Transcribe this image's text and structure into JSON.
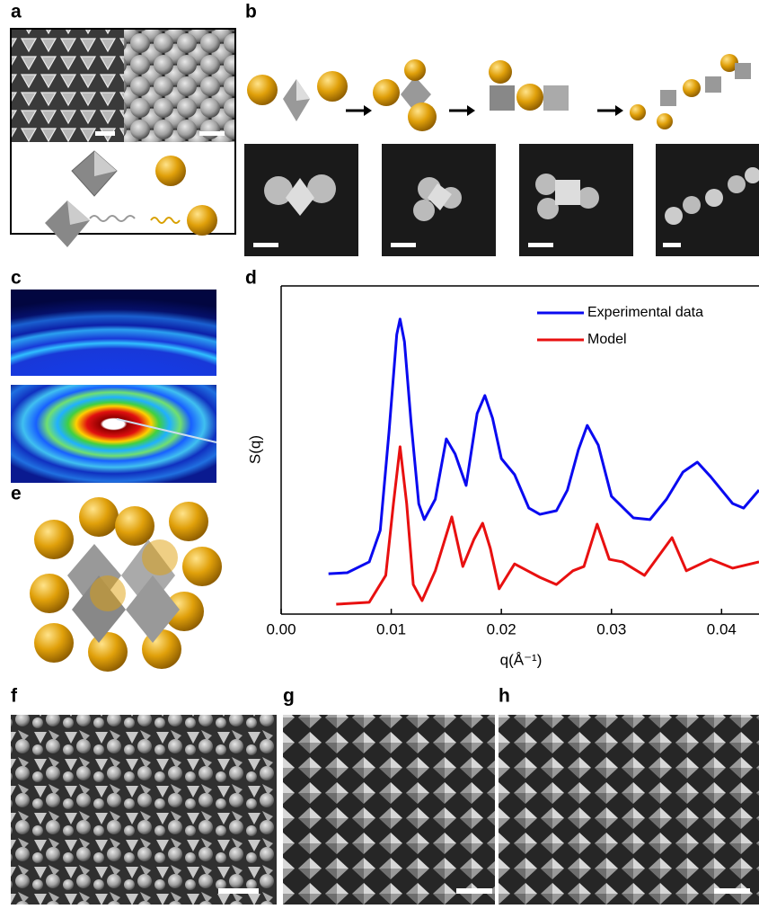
{
  "panel_labels": [
    "a",
    "b",
    "c",
    "d",
    "e",
    "f",
    "g",
    "h"
  ],
  "chart_data": {
    "type": "line",
    "xlabel": "q(Å⁻¹)",
    "ylabel": "S(q)",
    "xlim": [
      0,
      0.0434
    ],
    "ylim": [
      0,
      10
    ],
    "xticks": [
      {
        "value": 0,
        "label": "0.00"
      },
      0.01,
      0.02,
      0.03,
      0.04
    ],
    "legend": "upper right",
    "series": [
      {
        "name": "Experimental data",
        "color": "#0a0af0",
        "x": [
          0.0043,
          0.006,
          0.008,
          0.009,
          0.0098,
          0.0105,
          0.0108,
          0.0112,
          0.0118,
          0.0125,
          0.013,
          0.014,
          0.015,
          0.0158,
          0.0168,
          0.0178,
          0.0185,
          0.0192,
          0.02,
          0.0212,
          0.0225,
          0.0235,
          0.025,
          0.026,
          0.027,
          0.0278,
          0.0288,
          0.03,
          0.032,
          0.0335,
          0.035,
          0.0365,
          0.0378,
          0.039,
          0.041,
          0.042,
          0.0434
        ],
        "values": [
          1.23,
          1.26,
          1.59,
          2.55,
          5.56,
          8.52,
          8.99,
          8.3,
          5.84,
          3.36,
          2.88,
          3.5,
          5.34,
          4.88,
          3.92,
          6.11,
          6.66,
          5.97,
          4.74,
          4.25,
          3.23,
          3.04,
          3.15,
          3.78,
          5.01,
          5.75,
          5.15,
          3.59,
          2.93,
          2.88,
          3.5,
          4.33,
          4.63,
          4.19,
          3.37,
          3.23,
          3.78
        ]
      },
      {
        "name": "Model",
        "color": "#e81010",
        "x": [
          0.005,
          0.008,
          0.0095,
          0.0102,
          0.0108,
          0.0114,
          0.012,
          0.0128,
          0.014,
          0.0155,
          0.0165,
          0.0175,
          0.0183,
          0.019,
          0.0198,
          0.0212,
          0.0235,
          0.025,
          0.0265,
          0.0275,
          0.0287,
          0.0298,
          0.031,
          0.033,
          0.0355,
          0.0368,
          0.039,
          0.041,
          0.0434
        ],
        "values": [
          0.3,
          0.36,
          1.18,
          3.37,
          5.1,
          3.37,
          0.9,
          0.41,
          1.32,
          2.96,
          1.45,
          2.27,
          2.77,
          2.0,
          0.77,
          1.53,
          1.12,
          0.9,
          1.32,
          1.45,
          2.74,
          1.67,
          1.59,
          1.18,
          2.33,
          1.32,
          1.67,
          1.4,
          1.59
        ]
      }
    ]
  }
}
